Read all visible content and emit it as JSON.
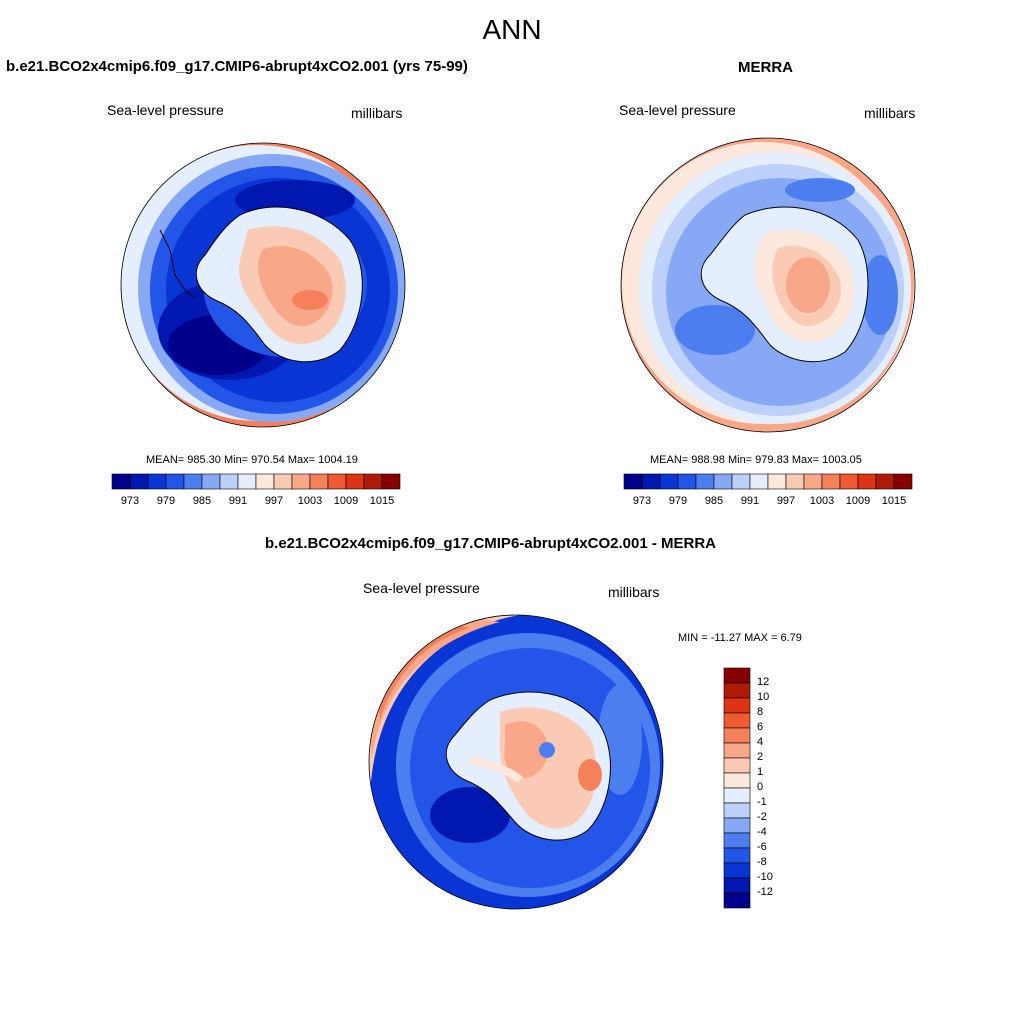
{
  "main_title": "ANN",
  "panels": [
    {
      "title": "b.e21.BCO2x4cmip6.f09_g17.CMIP6-abrupt4xCO2.001 (yrs 75-99)",
      "left_label": "Sea-level pressure",
      "right_label": "millibars",
      "stats": "MEAN= 985.30  Min= 970.54  Max= 1004.19"
    },
    {
      "title": "MERRA",
      "left_label": "Sea-level pressure",
      "right_label": "millibars",
      "stats": "MEAN= 988.98  Min= 979.83  Max= 1003.05"
    },
    {
      "title": "b.e21.BCO2x4cmip6.f09_g17.CMIP6-abrupt4xCO2.001 - MERRA",
      "left_label": "Sea-level pressure",
      "right_label": "millibars",
      "stats": "MIN = -11.27 MAX =   6.79"
    }
  ],
  "horizontal_colorbar": {
    "tick_labels": [
      "973",
      "979",
      "985",
      "991",
      "997",
      "1003",
      "1009",
      "1015"
    ],
    "colors": [
      "#00008b",
      "#0018b0",
      "#0a35d5",
      "#2255e8",
      "#4d7ef0",
      "#86a8f5",
      "#bcd0fa",
      "#e4eefc",
      "#fde8de",
      "#fbcab4",
      "#f8a888",
      "#f5805c",
      "#f05a32",
      "#dd3514",
      "#b21a08",
      "#860000"
    ]
  },
  "vertical_colorbar": {
    "tick_labels": [
      "12",
      "10",
      "8",
      "6",
      "4",
      "2",
      "1",
      "0",
      "-1",
      "-2",
      "-4",
      "-6",
      "-8",
      "-10",
      "-12"
    ],
    "colors": [
      "#860000",
      "#b21a08",
      "#dd3514",
      "#f05a32",
      "#f5805c",
      "#f8a888",
      "#fbcab4",
      "#fde8de",
      "#e4eefc",
      "#bcd0fa",
      "#86a8f5",
      "#4d7ef0",
      "#2255e8",
      "#0a35d5",
      "#0018b0",
      "#00008b"
    ]
  },
  "chart_data": [
    {
      "type": "heatmap",
      "title": "b.e21.BCO2x4cmip6.f09_g17.CMIP6-abrupt4xCO2.001 (yrs 75-99)",
      "variable": "Sea-level pressure",
      "units": "millibars",
      "mean": 985.3,
      "min": 970.54,
      "max": 1004.19,
      "contour_levels": [
        973,
        976,
        979,
        982,
        985,
        988,
        991,
        994,
        997,
        1000,
        1003,
        1006,
        1009,
        1012,
        1015
      ]
    },
    {
      "type": "heatmap",
      "title": "MERRA",
      "variable": "Sea-level pressure",
      "units": "millibars",
      "mean": 988.98,
      "min": 979.83,
      "max": 1003.05,
      "contour_levels": [
        973,
        976,
        979,
        982,
        985,
        988,
        991,
        994,
        997,
        1000,
        1003,
        1006,
        1009,
        1012,
        1015
      ]
    },
    {
      "type": "heatmap",
      "title": "b.e21.BCO2x4cmip6.f09_g17.CMIP6-abrupt4xCO2.001 - MERRA",
      "variable": "Sea-level pressure",
      "units": "millibars",
      "min": -11.27,
      "max": 6.79,
      "contour_levels": [
        -12,
        -10,
        -8,
        -6,
        -4,
        -2,
        -1,
        0,
        1,
        2,
        4,
        6,
        8,
        10,
        12
      ]
    }
  ]
}
